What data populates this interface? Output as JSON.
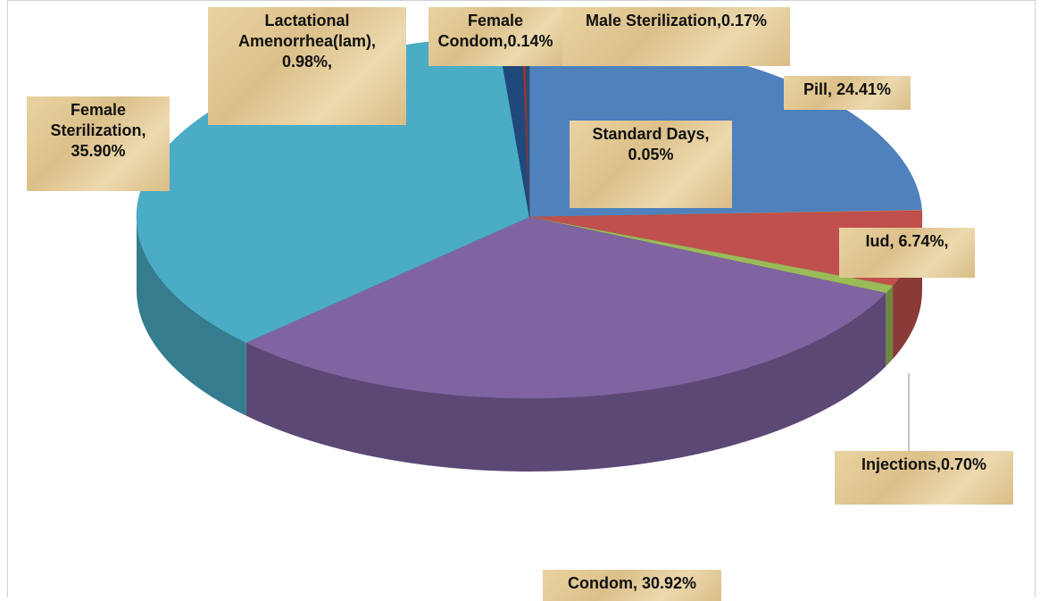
{
  "chart_data": {
    "type": "pie",
    "values": [
      24.41,
      0.05,
      6.74,
      0.7,
      30.92,
      35.9,
      0.98,
      0.14,
      0.17
    ],
    "value_labels": [
      "Pill, 24.41%",
      "Standard Days, 0.05%",
      "Iud, 6.74%,",
      "Injections,0.70%",
      "Condom, 30.92%",
      "Female Sterilization, 35.90%",
      "Lactational Amenorrhea(lam), 0.98%,",
      "Female Condom,0.14%",
      "Male Sterilization,0.17%"
    ],
    "colors": [
      "#4f81bd",
      "#f79646",
      "#c0504d",
      "#9bbb59",
      "#8064a2",
      "#4bacc6",
      "#1f497d",
      "#953735",
      "#2c4d75"
    ]
  }
}
